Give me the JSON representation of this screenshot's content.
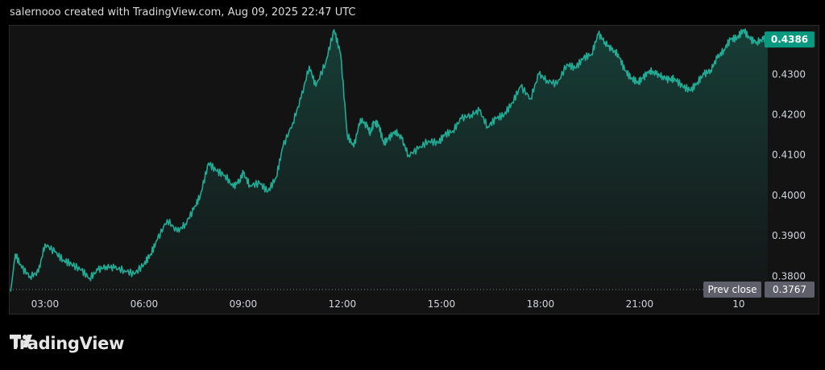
{
  "header": {
    "attribution": "salernooo created with TradingView.com, Aug 09, 2025 22:47 UTC"
  },
  "footer": {
    "brand": "TradingView",
    "logo_icon": "tradingview-logo-icon"
  },
  "colors": {
    "line": "#22ab94",
    "price_badge": "#089981",
    "prev_close_badge": "#5d606b",
    "background": "#131313"
  },
  "chart_data": {
    "type": "area",
    "title": "",
    "xlabel": "",
    "ylabel": "",
    "ylim": [
      0.3763,
      0.442
    ],
    "grid": false,
    "x_ticks": [
      "03:00",
      "06:00",
      "09:00",
      "12:00",
      "15:00",
      "18:00",
      "21:00",
      "10"
    ],
    "y_ticks": [
      "0.3800",
      "0.3900",
      "0.4000",
      "0.4100",
      "0.4200",
      "0.4300"
    ],
    "last_price": "0.4386",
    "prev_close": {
      "label": "Prev close",
      "value": "0.3767"
    },
    "series": [
      {
        "x_hours": [
          1.96,
          2.1,
          2.3,
          2.55,
          2.8,
          3.0,
          3.3,
          3.55,
          3.8,
          4.1,
          4.35,
          4.6,
          4.85,
          5.1,
          5.4,
          5.7,
          6.0,
          6.2,
          6.4,
          6.7,
          7.0,
          7.25,
          7.5,
          7.7,
          7.95,
          8.2,
          8.45,
          8.7,
          8.9,
          9.0,
          9.2,
          9.5,
          9.75,
          10.0,
          10.2,
          10.5,
          10.75,
          11.0,
          11.2,
          11.5,
          11.75,
          11.95,
          12.15,
          12.35,
          12.55,
          12.75,
          12.85,
          12.95,
          13.1,
          13.25,
          13.4,
          13.6,
          13.8,
          14.0,
          14.3,
          14.6,
          14.9,
          15.1,
          15.35,
          15.6,
          15.9,
          16.15,
          16.4,
          16.65,
          16.9,
          17.15,
          17.4,
          17.7,
          17.95,
          18.2,
          18.5,
          18.8,
          19.05,
          19.3,
          19.55,
          19.75,
          19.95,
          20.15,
          20.35,
          20.55,
          20.75,
          20.95,
          21.1,
          21.3,
          21.5,
          21.7,
          21.9,
          22.05,
          22.3,
          22.55,
          22.75,
          22.95,
          23.15,
          23.35,
          23.55,
          23.75,
          23.95,
          24.15,
          24.35,
          24.55,
          24.75,
          24.88
        ],
        "values": [
          0.3762,
          0.3855,
          0.382,
          0.38,
          0.381,
          0.388,
          0.386,
          0.384,
          0.383,
          0.3815,
          0.3795,
          0.3815,
          0.3825,
          0.382,
          0.3815,
          0.3805,
          0.383,
          0.3855,
          0.389,
          0.394,
          0.391,
          0.393,
          0.3965,
          0.4,
          0.408,
          0.406,
          0.405,
          0.402,
          0.404,
          0.4055,
          0.4025,
          0.403,
          0.401,
          0.4045,
          0.412,
          0.418,
          0.424,
          0.432,
          0.427,
          0.433,
          0.441,
          0.435,
          0.415,
          0.412,
          0.419,
          0.417,
          0.4155,
          0.418,
          0.4175,
          0.413,
          0.414,
          0.416,
          0.414,
          0.41,
          0.4115,
          0.4135,
          0.413,
          0.415,
          0.416,
          0.419,
          0.42,
          0.421,
          0.417,
          0.419,
          0.42,
          0.423,
          0.427,
          0.424,
          0.43,
          0.4285,
          0.4275,
          0.4325,
          0.4315,
          0.434,
          0.435,
          0.44,
          0.438,
          0.436,
          0.435,
          0.431,
          0.429,
          0.428,
          0.429,
          0.431,
          0.43,
          0.4295,
          0.4285,
          0.429,
          0.427,
          0.426,
          0.428,
          0.43,
          0.431,
          0.434,
          0.436,
          0.4386,
          0.439,
          0.441,
          0.4386,
          0.438,
          0.4386,
          0.4386
        ]
      }
    ]
  }
}
